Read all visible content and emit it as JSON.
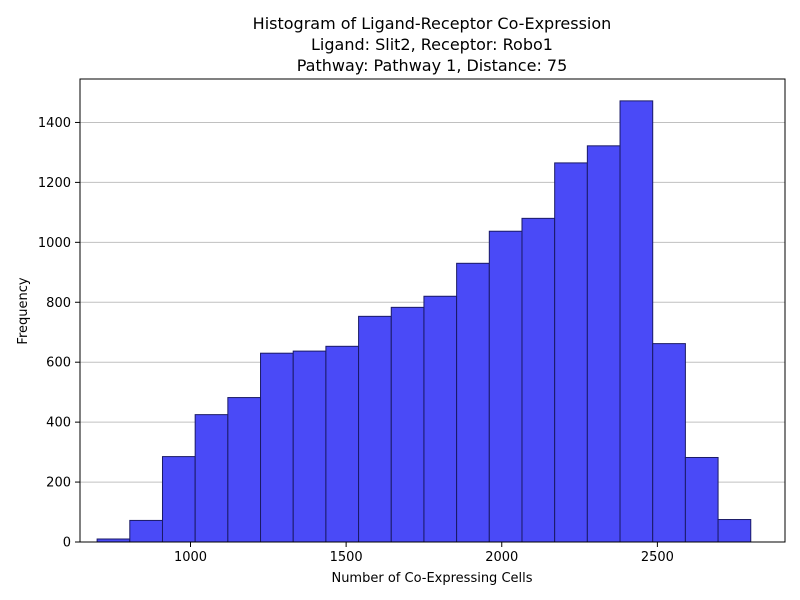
{
  "chart_data": {
    "type": "bar",
    "title_lines": [
      "Histogram of Ligand-Receptor Co-Expression",
      "Ligand: Slit2, Receptor: Robo1",
      "Pathway: Pathway 1, Distance: 75"
    ],
    "xlabel": "Number of Co-Expressing Cells",
    "ylabel": "Frequency",
    "xlim": [
      645,
      2910
    ],
    "ylim": [
      0,
      1545
    ],
    "xticks": [
      1000,
      1500,
      2000,
      2500
    ],
    "yticks": [
      0,
      200,
      400,
      600,
      800,
      1000,
      1200,
      1400
    ],
    "bin_edges": [
      700,
      805,
      910,
      1015,
      1120,
      1225,
      1330,
      1435,
      1540,
      1645,
      1750,
      1855,
      1960,
      2065,
      2170,
      2275,
      2380,
      2485,
      2590,
      2695,
      2800
    ],
    "values": [
      10,
      72,
      285,
      425,
      482,
      630,
      637,
      653,
      753,
      783,
      820,
      930,
      1037,
      1080,
      1265,
      1322,
      1472,
      662,
      282,
      75
    ],
    "bar_color": "#4a4af7",
    "edge_color": "#1a1a66",
    "grid": "y"
  }
}
